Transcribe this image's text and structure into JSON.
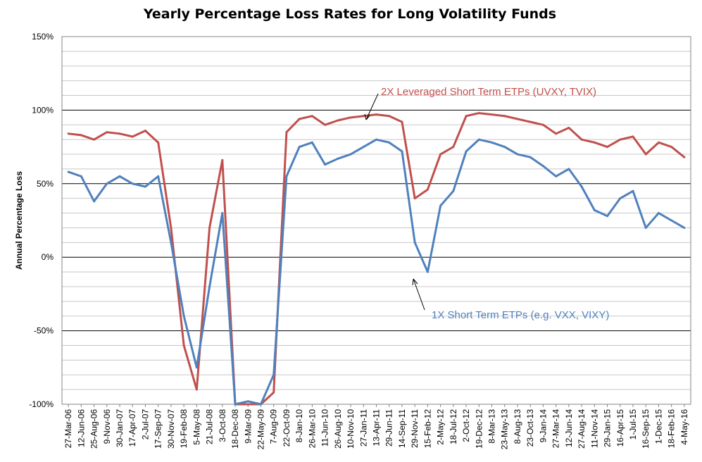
{
  "chart_data": {
    "type": "line",
    "title": "Yearly Percentage Loss Rates for Long Volatility Funds",
    "xlabel": "",
    "ylabel": "Annual Percentage Loss",
    "ylim": [
      -100,
      150
    ],
    "y_ticks": [
      "150%",
      "100%",
      "50%",
      "0%",
      "-50%",
      "-100%"
    ],
    "y_tick_values": [
      150,
      100,
      50,
      0,
      -50,
      -100
    ],
    "grid": true,
    "legend": "none",
    "categories": [
      "27-Mar-06",
      "12-Jun-06",
      "25-Aug-06",
      "9-Nov-06",
      "30-Jan-07",
      "17-Apr-07",
      "2-Jul-07",
      "17-Sep-07",
      "30-Nov-07",
      "19-Feb-08",
      "5-May-08",
      "21-Jul-08",
      "3-Oct-08",
      "18-Dec-08",
      "9-Mar-09",
      "22-May-09",
      "7-Aug-09",
      "22-Oct-09",
      "8-Jan-10",
      "26-Mar-10",
      "11-Jun-10",
      "26-Aug-10",
      "10-Nov-10",
      "27-Jan-11",
      "13-Apr-11",
      "29-Jun-11",
      "14-Sep-11",
      "29-Nov-11",
      "15-Feb-12",
      "2-May-12",
      "18-Jul-12",
      "2-Oct-12",
      "19-Dec-12",
      "8-Mar-13",
      "23-May-13",
      "8-Aug-13",
      "23-Oct-13",
      "9-Jan-14",
      "27-Mar-14",
      "12-Jun-14",
      "27-Aug-14",
      "11-Nov-14",
      "29-Jan-15",
      "16-Apr-15",
      "1-Jul-15",
      "16-Sep-15",
      "1-Dec-15",
      "18-Feb-16",
      "4-May-16"
    ],
    "series": [
      {
        "name": "2X Leveraged Short Term ETPs (UVXY, TVIX)",
        "color": "#C0504D",
        "values": [
          84,
          83,
          80,
          85,
          84,
          82,
          86,
          78,
          20,
          -60,
          -90,
          20,
          66,
          -100,
          -100,
          -100,
          -92,
          85,
          94,
          96,
          90,
          93,
          95,
          96,
          97,
          96,
          92,
          40,
          46,
          70,
          75,
          96,
          98,
          97,
          96,
          94,
          92,
          90,
          84,
          88,
          80,
          78,
          75,
          80,
          82,
          70,
          78,
          75,
          68
        ]
      },
      {
        "name": "1X Short Term ETPs (e.g. VXX, VIXY)",
        "color": "#4F81BD",
        "values": [
          58,
          55,
          38,
          50,
          55,
          50,
          48,
          55,
          10,
          -40,
          -75,
          -20,
          30,
          -100,
          -98,
          -100,
          -80,
          55,
          75,
          78,
          63,
          67,
          70,
          75,
          80,
          78,
          72,
          10,
          -10,
          35,
          45,
          72,
          80,
          78,
          75,
          70,
          68,
          62,
          55,
          60,
          48,
          32,
          28,
          40,
          45,
          20,
          30,
          25,
          20
        ]
      }
    ],
    "annotations": [
      {
        "text": "2X Leveraged Short Term ETPs (UVXY, TVIX)",
        "color": "#C0504D"
      },
      {
        "text": "1X Short Term ETPs (e.g. VXX, VIXY)",
        "color": "#4F81BD"
      }
    ]
  }
}
